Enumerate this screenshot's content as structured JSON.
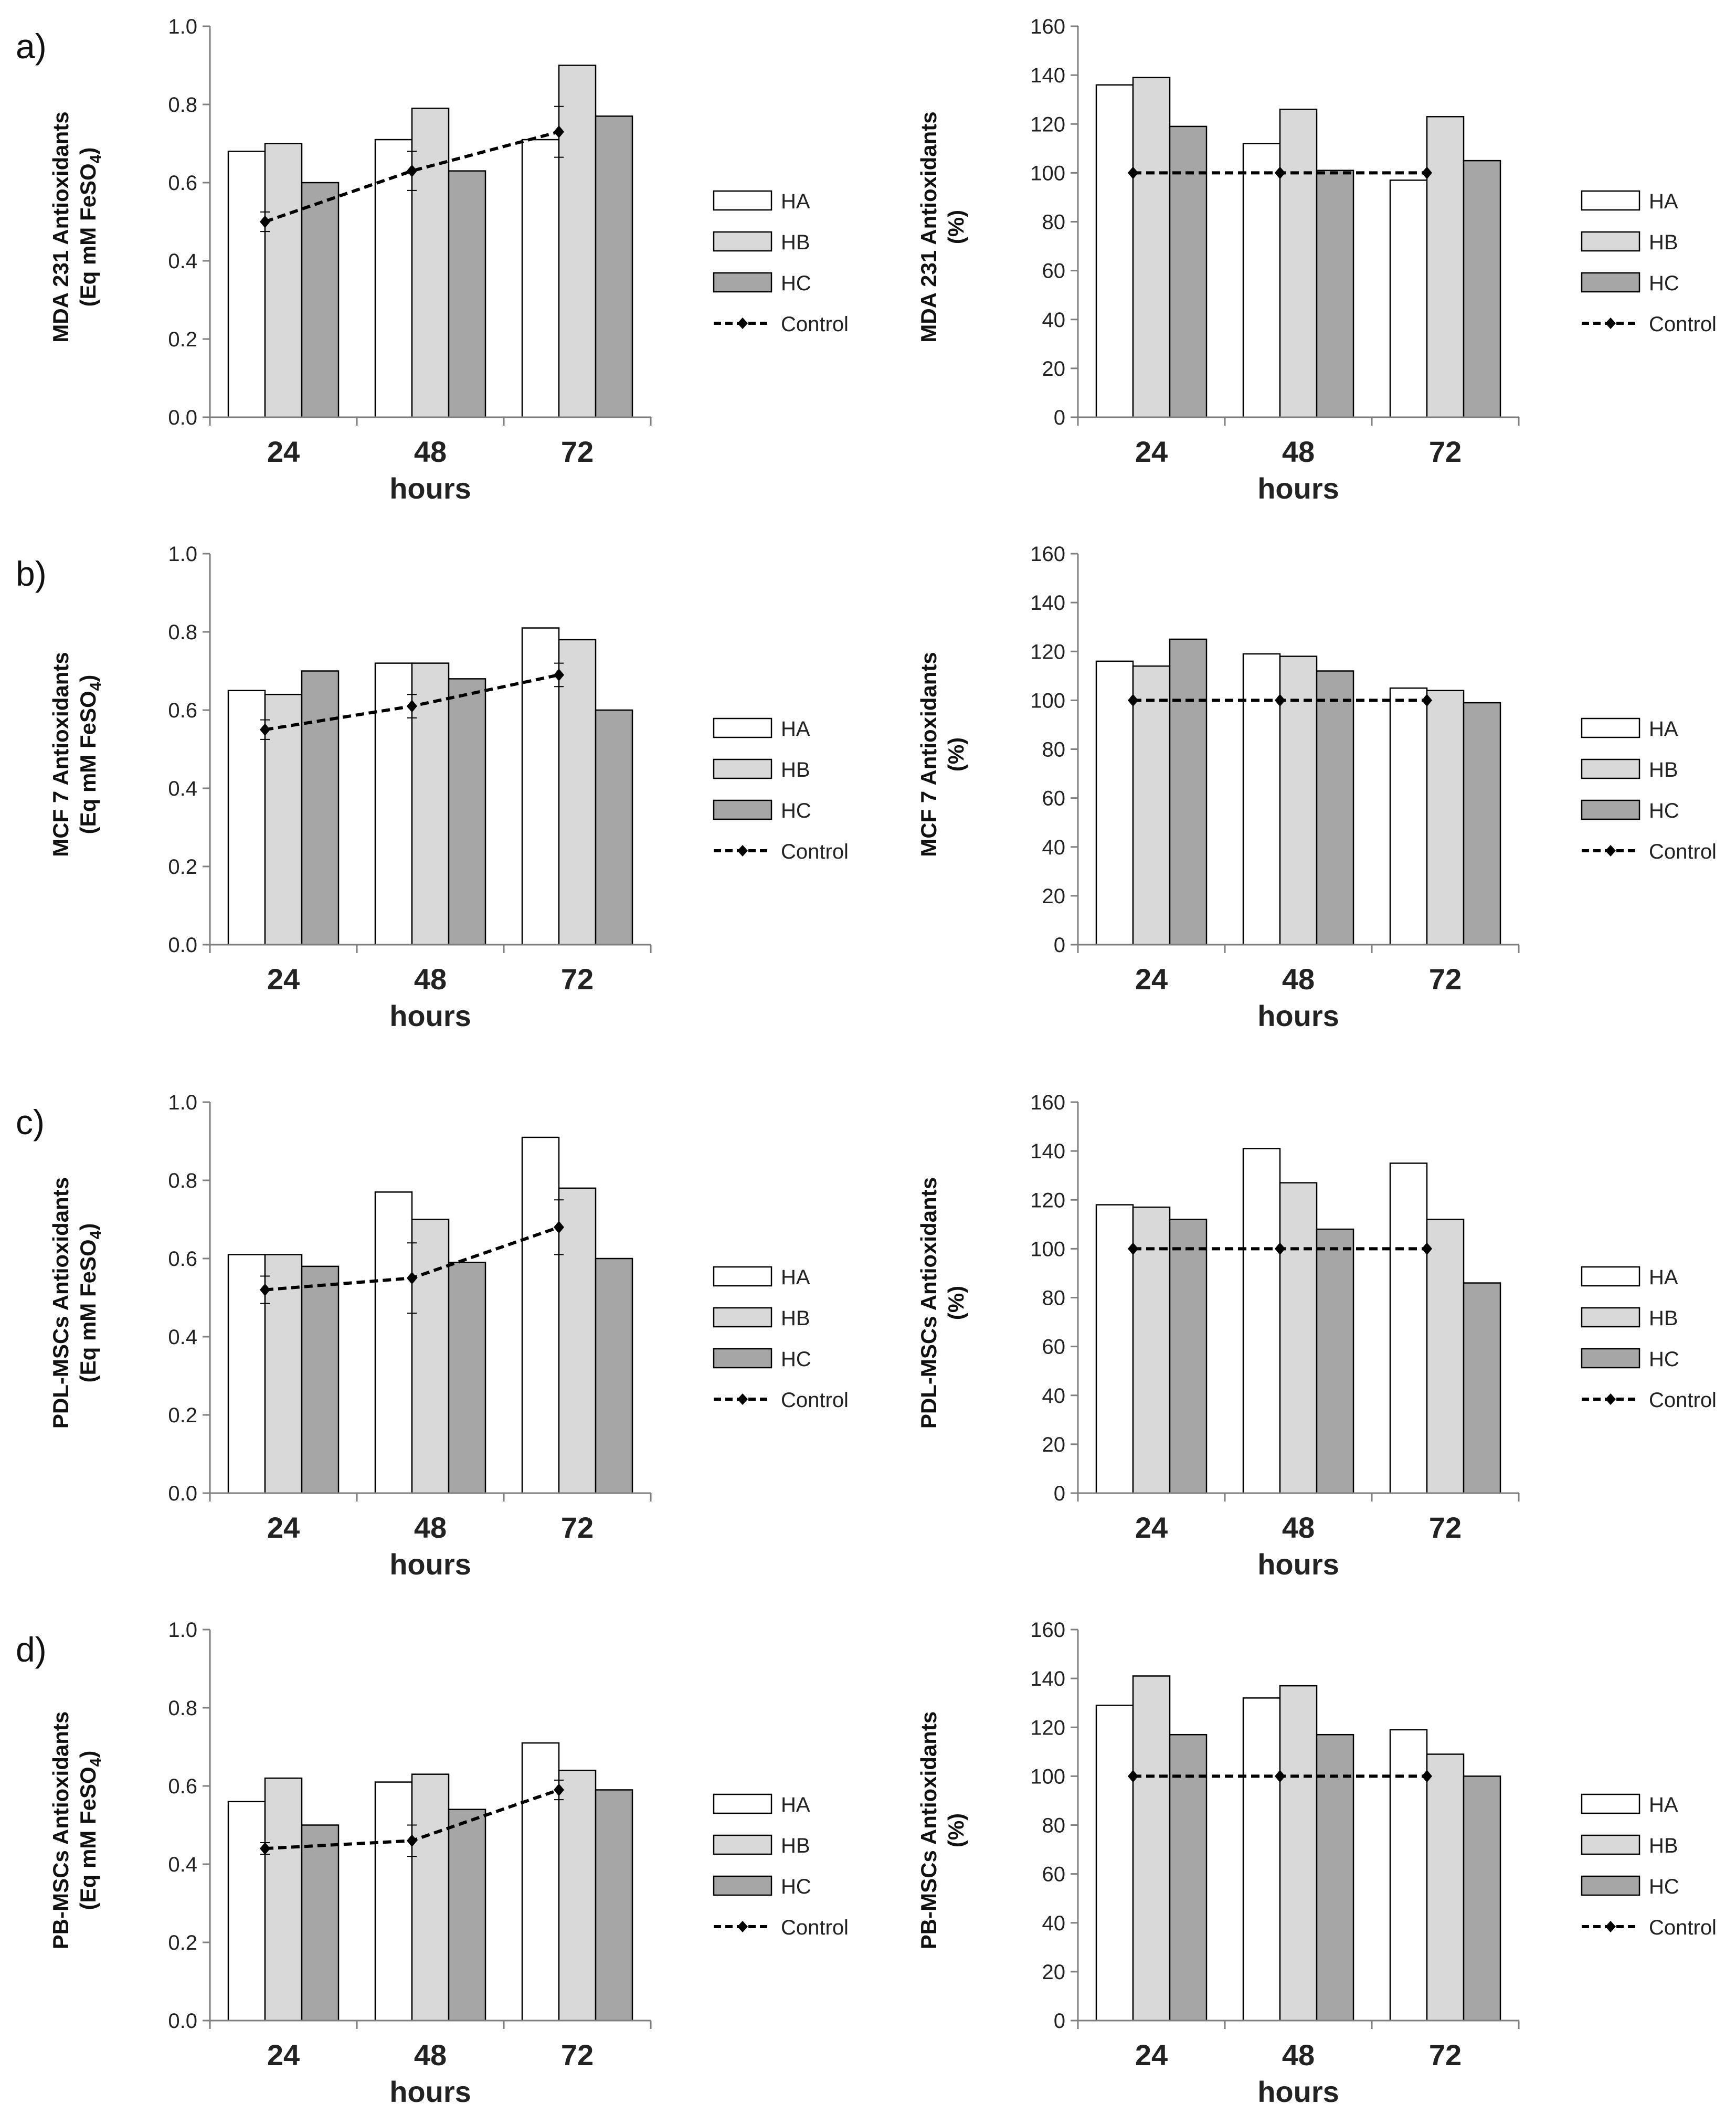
{
  "colors": {
    "HA": "#ffffff",
    "HB": "#d9d9d9",
    "HC": "#a6a6a6",
    "line": "#000000",
    "axis": "#7f7f7f"
  },
  "panel_labels": [
    "a)",
    "b)",
    "c)",
    "d)"
  ],
  "chart_data": [
    {
      "id": "a-left",
      "panel": "a)",
      "type": "bar",
      "categories": [
        "24",
        "48",
        "72"
      ],
      "xlabel": "hours",
      "ylabel_lines": [
        "MDA 231 Antioxidants",
        "(Eq mM FeSO",
        "4",
        ")"
      ],
      "ylim": [
        0,
        1.0
      ],
      "yticks": [
        "0.0",
        "0.2",
        "0.4",
        "0.6",
        "0.8",
        "1.0"
      ],
      "ytick_values": [
        0,
        0.2,
        0.4,
        0.6,
        0.8,
        1.0
      ],
      "series": [
        {
          "name": "HA",
          "values": [
            0.68,
            0.71,
            0.71
          ]
        },
        {
          "name": "HB",
          "values": [
            0.7,
            0.79,
            0.9
          ]
        },
        {
          "name": "HC",
          "values": [
            0.6,
            0.63,
            0.77
          ]
        }
      ],
      "control": {
        "name": "Control",
        "values": [
          0.5,
          0.63,
          0.73
        ],
        "errors": [
          0.025,
          0.05,
          0.065
        ]
      },
      "legend": [
        "HA",
        "HB",
        "HC",
        "Control"
      ]
    },
    {
      "id": "a-right",
      "panel": "a)",
      "type": "bar",
      "categories": [
        "24",
        "48",
        "72"
      ],
      "xlabel": "hours",
      "ylabel_lines": [
        "MDA 231 Antioxidants",
        "(%)"
      ],
      "ylim": [
        0,
        160
      ],
      "yticks": [
        "0",
        "20",
        "40",
        "60",
        "80",
        "100",
        "120",
        "140",
        "160"
      ],
      "ytick_values": [
        0,
        20,
        40,
        60,
        80,
        100,
        120,
        140,
        160
      ],
      "series": [
        {
          "name": "HA",
          "values": [
            136,
            112,
            97
          ]
        },
        {
          "name": "HB",
          "values": [
            139,
            126,
            123
          ]
        },
        {
          "name": "HC",
          "values": [
            119,
            101,
            105
          ]
        }
      ],
      "control": {
        "name": "Control",
        "values": [
          100,
          100,
          100
        ],
        "errors": [
          0,
          0,
          0
        ]
      },
      "legend": [
        "HA",
        "HB",
        "HC",
        "Control"
      ]
    },
    {
      "id": "b-left",
      "panel": "b)",
      "type": "bar",
      "categories": [
        "24",
        "48",
        "72"
      ],
      "xlabel": "hours",
      "ylabel_lines": [
        "MCF 7 Antioxidants",
        "(Eq mM FeSO",
        "4",
        ")"
      ],
      "ylim": [
        0,
        1.0
      ],
      "yticks": [
        "0.0",
        "0.2",
        "0.4",
        "0.6",
        "0.8",
        "1.0"
      ],
      "ytick_values": [
        0,
        0.2,
        0.4,
        0.6,
        0.8,
        1.0
      ],
      "series": [
        {
          "name": "HA",
          "values": [
            0.65,
            0.72,
            0.81
          ]
        },
        {
          "name": "HB",
          "values": [
            0.64,
            0.72,
            0.78
          ]
        },
        {
          "name": "HC",
          "values": [
            0.7,
            0.68,
            0.6
          ]
        }
      ],
      "control": {
        "name": "Control",
        "values": [
          0.55,
          0.61,
          0.69
        ],
        "errors": [
          0.025,
          0.03,
          0.03
        ]
      },
      "legend": [
        "HA",
        "HB",
        "HC",
        "Control"
      ]
    },
    {
      "id": "b-right",
      "panel": "b)",
      "type": "bar",
      "categories": [
        "24",
        "48",
        "72"
      ],
      "xlabel": "hours",
      "ylabel_lines": [
        "MCF 7 Antioxidants",
        "(%)"
      ],
      "ylim": [
        0,
        160
      ],
      "yticks": [
        "0",
        "20",
        "40",
        "60",
        "80",
        "100",
        "120",
        "140",
        "160"
      ],
      "ytick_values": [
        0,
        20,
        40,
        60,
        80,
        100,
        120,
        140,
        160
      ],
      "series": [
        {
          "name": "HA",
          "values": [
            116,
            119,
            105
          ]
        },
        {
          "name": "HB",
          "values": [
            114,
            118,
            104
          ]
        },
        {
          "name": "HC",
          "values": [
            125,
            112,
            99
          ]
        }
      ],
      "control": {
        "name": "Control",
        "values": [
          100,
          100,
          100
        ],
        "errors": [
          0,
          0,
          0
        ]
      },
      "legend": [
        "HA",
        "HB",
        "HC",
        "Control"
      ]
    },
    {
      "id": "c-left",
      "panel": "c)",
      "type": "bar",
      "categories": [
        "24",
        "48",
        "72"
      ],
      "xlabel": "hours",
      "ylabel_lines": [
        "PDL-MSCs Antioxidants",
        "(Eq mM FeSO",
        "4",
        ")"
      ],
      "ylim": [
        0,
        1.0
      ],
      "yticks": [
        "0.0",
        "0.2",
        "0.4",
        "0.6",
        "0.8",
        "1.0"
      ],
      "ytick_values": [
        0,
        0.2,
        0.4,
        0.6,
        0.8,
        1.0
      ],
      "series": [
        {
          "name": "HA",
          "values": [
            0.61,
            0.77,
            0.91
          ]
        },
        {
          "name": "HB",
          "values": [
            0.61,
            0.7,
            0.78
          ]
        },
        {
          "name": "HC",
          "values": [
            0.58,
            0.59,
            0.6
          ]
        }
      ],
      "control": {
        "name": "Control",
        "values": [
          0.52,
          0.55,
          0.68
        ],
        "errors": [
          0.035,
          0.09,
          0.07
        ]
      },
      "legend": [
        "HA",
        "HB",
        "HC",
        "Control"
      ]
    },
    {
      "id": "c-right",
      "panel": "c)",
      "type": "bar",
      "categories": [
        "24",
        "48",
        "72"
      ],
      "xlabel": "hours",
      "ylabel_lines": [
        "PDL-MSCs Antioxidants",
        "(%)"
      ],
      "ylim": [
        0,
        160
      ],
      "yticks": [
        "0",
        "20",
        "40",
        "60",
        "80",
        "100",
        "120",
        "140",
        "160"
      ],
      "ytick_values": [
        0,
        20,
        40,
        60,
        80,
        100,
        120,
        140,
        160
      ],
      "series": [
        {
          "name": "HA",
          "values": [
            118,
            141,
            135
          ]
        },
        {
          "name": "HB",
          "values": [
            117,
            127,
            112
          ]
        },
        {
          "name": "HC",
          "values": [
            112,
            108,
            86
          ]
        }
      ],
      "control": {
        "name": "Control",
        "values": [
          100,
          100,
          100
        ],
        "errors": [
          0,
          0,
          0
        ]
      },
      "legend": [
        "HA",
        "HB",
        "HC",
        "Control"
      ]
    },
    {
      "id": "d-left",
      "panel": "d)",
      "type": "bar",
      "categories": [
        "24",
        "48",
        "72"
      ],
      "xlabel": "hours",
      "ylabel_lines": [
        "PB-MSCs Antioxidants",
        "(Eq mM FeSO",
        "4",
        ")"
      ],
      "ylim": [
        0,
        1.0
      ],
      "yticks": [
        "0.0",
        "0.2",
        "0.4",
        "0.6",
        "0.8",
        "1.0"
      ],
      "ytick_values": [
        0,
        0.2,
        0.4,
        0.6,
        0.8,
        1.0
      ],
      "series": [
        {
          "name": "HA",
          "values": [
            0.56,
            0.61,
            0.71
          ]
        },
        {
          "name": "HB",
          "values": [
            0.62,
            0.63,
            0.64
          ]
        },
        {
          "name": "HC",
          "values": [
            0.5,
            0.54,
            0.59
          ]
        }
      ],
      "control": {
        "name": "Control",
        "values": [
          0.44,
          0.46,
          0.59
        ],
        "errors": [
          0.015,
          0.04,
          0.025
        ]
      },
      "legend": [
        "HA",
        "HB",
        "HC",
        "Control"
      ]
    },
    {
      "id": "d-right",
      "panel": "d)",
      "type": "bar",
      "categories": [
        "24",
        "48",
        "72"
      ],
      "xlabel": "hours",
      "ylabel_lines": [
        "PB-MSCs Antioxidants",
        "(%)"
      ],
      "ylim": [
        0,
        160
      ],
      "yticks": [
        "0",
        "20",
        "40",
        "60",
        "80",
        "100",
        "120",
        "140",
        "160"
      ],
      "ytick_values": [
        0,
        20,
        40,
        60,
        80,
        100,
        120,
        140,
        160
      ],
      "series": [
        {
          "name": "HA",
          "values": [
            129,
            132,
            119
          ]
        },
        {
          "name": "HB",
          "values": [
            141,
            137,
            109
          ]
        },
        {
          "name": "HC",
          "values": [
            117,
            117,
            100
          ]
        }
      ],
      "control": {
        "name": "Control",
        "values": [
          100,
          100,
          100
        ],
        "errors": [
          0,
          0,
          0
        ]
      },
      "legend": [
        "HA",
        "HB",
        "HC",
        "Control"
      ]
    }
  ]
}
